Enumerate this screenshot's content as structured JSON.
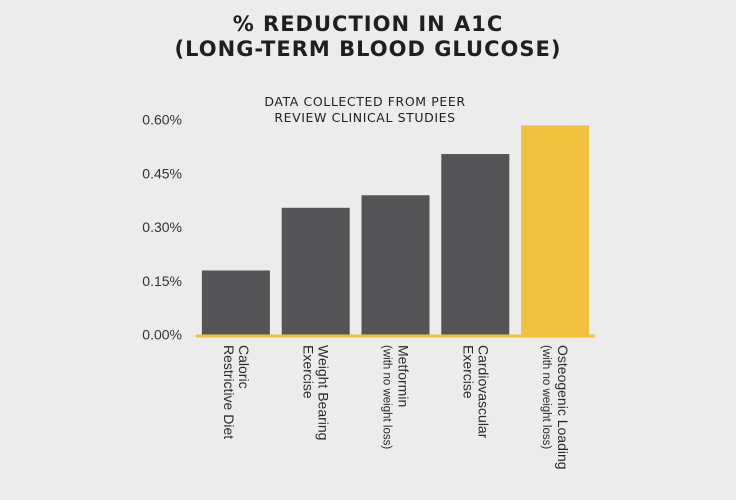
{
  "chart_data": {
    "type": "bar",
    "title_lines": [
      "% REDUCTION IN A1C",
      "(LONG-TERM BLOOD GLUCOSE)"
    ],
    "subtitle_lines": [
      "DATA COLLECTED FROM PEER",
      "REVIEW CLINICAL STUDIES"
    ],
    "categories": [
      [
        "Caloric",
        "Restrictive Diet"
      ],
      [
        "Weight Bearing",
        "Exercise"
      ],
      [
        "Metformin",
        "(with no weight loss)"
      ],
      [
        "Cardiovascular",
        "Exercise"
      ],
      [
        "Osteogenic Loading",
        "(with no weight loss)"
      ]
    ],
    "values": [
      0.18,
      0.355,
      0.39,
      0.505,
      0.585
    ],
    "ylim": [
      0,
      0.6
    ],
    "yticks": [
      "0.00%",
      "0.15%",
      "0.30%",
      "0.45%",
      "0.60%"
    ],
    "ytick_values": [
      0,
      0.15,
      0.3,
      0.45,
      0.6
    ],
    "bar_color": "#555456",
    "highlight_color": "#f0c13e",
    "highlight_index": 4,
    "axis_color": "#f0c13e",
    "grid": false
  }
}
